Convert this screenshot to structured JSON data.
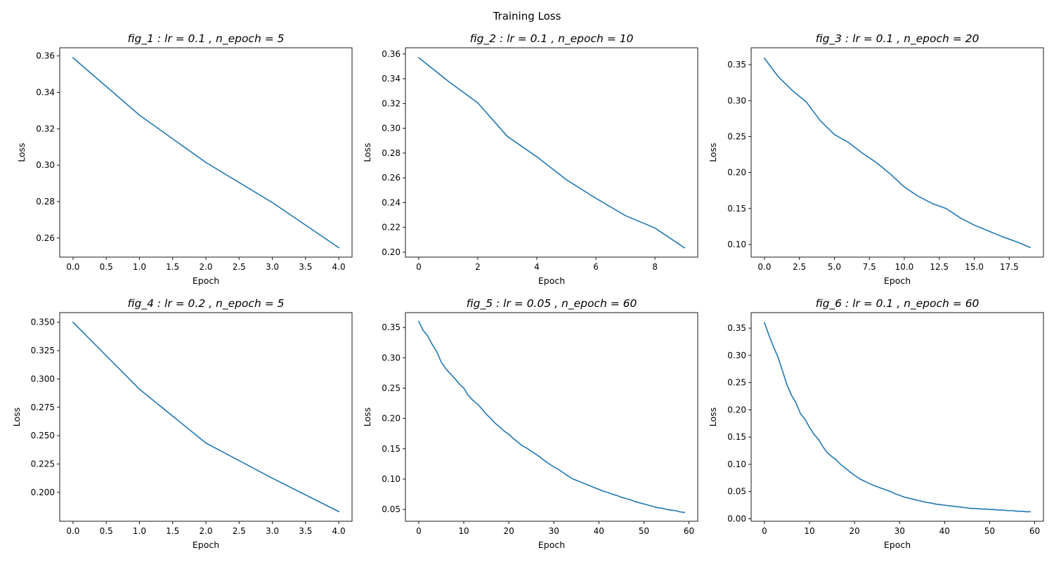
{
  "figure": {
    "suptitle": "Training Loss"
  },
  "chart_data": [
    {
      "type": "line",
      "title": "fig_1 : lr = 0.1 , n_epoch = 5",
      "xlabel": "Epoch",
      "ylabel": "Loss",
      "xlim": [
        -0.2,
        4.2
      ],
      "ylim": [
        0.2495,
        0.3645
      ],
      "xticks": [
        0,
        0.5,
        1,
        1.5,
        2,
        2.5,
        3,
        3.5,
        4
      ],
      "xtick_labels": [
        "0.0",
        "0.5",
        "1.0",
        "1.5",
        "2.0",
        "2.5",
        "3.0",
        "3.5",
        "4.0"
      ],
      "yticks": [
        0.26,
        0.28,
        0.3,
        0.32,
        0.34,
        0.36
      ],
      "ytick_labels": [
        "0.26",
        "0.28",
        "0.30",
        "0.32",
        "0.34",
        "0.36"
      ],
      "grid": false,
      "series": [
        {
          "color": "#1f77b4",
          "x": [
            0,
            1,
            2,
            3,
            4
          ],
          "y": [
            0.359,
            0.3275,
            0.3015,
            0.2795,
            0.2547
          ]
        }
      ]
    },
    {
      "type": "line",
      "title": "fig_2 : lr = 0.1 , n_epoch = 10",
      "xlabel": "Epoch",
      "ylabel": "Loss",
      "xlim": [
        -0.45,
        9.45
      ],
      "ylim": [
        0.196,
        0.365
      ],
      "xticks": [
        0,
        2,
        4,
        6,
        8
      ],
      "xtick_labels": [
        "0",
        "2",
        "4",
        "6",
        "8"
      ],
      "yticks": [
        0.2,
        0.22,
        0.24,
        0.26,
        0.28,
        0.3,
        0.32,
        0.34,
        0.36
      ],
      "ytick_labels": [
        "0.20",
        "0.22",
        "0.24",
        "0.26",
        "0.28",
        "0.30",
        "0.32",
        "0.34",
        "0.36"
      ],
      "grid": false,
      "series": [
        {
          "color": "#1f77b4",
          "x": [
            0,
            1,
            2,
            3,
            4,
            5,
            6,
            7,
            8,
            9
          ],
          "y": [
            0.357,
            0.338,
            0.3205,
            0.2935,
            0.277,
            0.2585,
            0.2435,
            0.2295,
            0.2195,
            0.2035
          ]
        }
      ]
    },
    {
      "type": "line",
      "title": "fig_3 : lr = 0.1 , n_epoch = 20",
      "xlabel": "Epoch",
      "ylabel": "Loss",
      "xlim": [
        -0.95,
        19.95
      ],
      "ylim": [
        0.0825,
        0.3735
      ],
      "xticks": [
        0,
        2.5,
        5,
        7.5,
        10,
        12.5,
        15,
        17.5
      ],
      "xtick_labels": [
        "0.0",
        "2.5",
        "5.0",
        "7.5",
        "10.0",
        "12.5",
        "15.0",
        "17.5"
      ],
      "yticks": [
        0.1,
        0.15,
        0.2,
        0.25,
        0.3,
        0.35
      ],
      "ytick_labels": [
        "0.10",
        "0.15",
        "0.20",
        "0.25",
        "0.30",
        "0.35"
      ],
      "grid": false,
      "series": [
        {
          "color": "#1f77b4",
          "x": [
            0,
            1,
            2,
            3,
            4,
            5,
            6,
            7,
            8,
            9,
            10,
            11,
            12,
            13,
            14,
            15,
            16,
            17,
            18,
            19
          ],
          "y": [
            0.359,
            0.333,
            0.314,
            0.298,
            0.272,
            0.253,
            0.242,
            0.227,
            0.214,
            0.198,
            0.18,
            0.167,
            0.157,
            0.15,
            0.137,
            0.127,
            0.119,
            0.111,
            0.104,
            0.096
          ]
        }
      ]
    },
    {
      "type": "line",
      "title": "fig_4 : lr = 0.2 , n_epoch = 5",
      "xlabel": "Epoch",
      "ylabel": "Loss",
      "xlim": [
        -0.2,
        4.2
      ],
      "ylim": [
        0.1745,
        0.3585
      ],
      "xticks": [
        0,
        0.5,
        1,
        1.5,
        2,
        2.5,
        3,
        3.5,
        4
      ],
      "xtick_labels": [
        "0.0",
        "0.5",
        "1.0",
        "1.5",
        "2.0",
        "2.5",
        "3.0",
        "3.5",
        "4.0"
      ],
      "yticks": [
        0.2,
        0.225,
        0.25,
        0.275,
        0.3,
        0.325,
        0.35
      ],
      "ytick_labels": [
        "0.200",
        "0.225",
        "0.250",
        "0.275",
        "0.300",
        "0.325",
        "0.350"
      ],
      "grid": false,
      "series": [
        {
          "color": "#1f77b4",
          "x": [
            0,
            1,
            2,
            3,
            4
          ],
          "y": [
            0.35,
            0.291,
            0.2435,
            0.2125,
            0.183
          ]
        }
      ]
    },
    {
      "type": "line",
      "title": "fig_5 : lr = 0.05 , n_epoch = 60",
      "xlabel": "Epoch",
      "ylabel": "Loss",
      "xlim": [
        -2.95,
        61.95
      ],
      "ylim": [
        0.0305,
        0.3745
      ],
      "xticks": [
        0,
        10,
        20,
        30,
        40,
        50,
        60
      ],
      "xtick_labels": [
        "0",
        "10",
        "20",
        "30",
        "40",
        "50",
        "60"
      ],
      "yticks": [
        0.05,
        0.1,
        0.15,
        0.2,
        0.25,
        0.3,
        0.35
      ],
      "ytick_labels": [
        "0.05",
        "0.10",
        "0.15",
        "0.20",
        "0.25",
        "0.30",
        "0.35"
      ],
      "grid": false,
      "series": [
        {
          "color": "#1f77b4",
          "x": [
            0,
            1,
            2,
            3,
            4,
            5,
            6,
            7,
            8,
            9,
            10,
            11,
            12,
            13,
            14,
            15,
            16,
            17,
            18,
            19,
            20,
            21,
            22,
            23,
            24,
            25,
            26,
            27,
            28,
            29,
            30,
            31,
            32,
            33,
            34,
            35,
            36,
            37,
            38,
            39,
            40,
            41,
            42,
            43,
            44,
            45,
            46,
            47,
            48,
            49,
            50,
            51,
            52,
            53,
            54,
            55,
            56,
            57,
            58,
            59
          ],
          "y": [
            0.36,
            0.345,
            0.336,
            0.322,
            0.31,
            0.293,
            0.282,
            0.274,
            0.266,
            0.257,
            0.25,
            0.238,
            0.23,
            0.224,
            0.216,
            0.207,
            0.2,
            0.192,
            0.186,
            0.179,
            0.174,
            0.167,
            0.161,
            0.155,
            0.151,
            0.146,
            0.141,
            0.136,
            0.13,
            0.125,
            0.12,
            0.116,
            0.111,
            0.106,
            0.101,
            0.098,
            0.095,
            0.092,
            0.089,
            0.086,
            0.083,
            0.08,
            0.078,
            0.075,
            0.073,
            0.07,
            0.068,
            0.066,
            0.063,
            0.061,
            0.059,
            0.057,
            0.055,
            0.053,
            0.052,
            0.05,
            0.049,
            0.048,
            0.046,
            0.045
          ]
        }
      ]
    },
    {
      "type": "line",
      "title": "fig_6 : lr = 0.1 , n_epoch = 60",
      "xlabel": "Epoch",
      "ylabel": "Loss",
      "xlim": [
        -2.95,
        61.95
      ],
      "ylim": [
        -0.0045,
        0.3785
      ],
      "xticks": [
        0,
        10,
        20,
        30,
        40,
        50,
        60
      ],
      "xtick_labels": [
        "0",
        "10",
        "20",
        "30",
        "40",
        "50",
        "60"
      ],
      "yticks": [
        0.0,
        0.05,
        0.1,
        0.15,
        0.2,
        0.25,
        0.3,
        0.35
      ],
      "ytick_labels": [
        "0.00",
        "0.05",
        "0.10",
        "0.15",
        "0.20",
        "0.25",
        "0.30",
        "0.35"
      ],
      "grid": false,
      "series": [
        {
          "color": "#1f77b4",
          "x": [
            0,
            1,
            2,
            3,
            4,
            5,
            6,
            7,
            8,
            9,
            10,
            11,
            12,
            13,
            14,
            15,
            16,
            17,
            18,
            19,
            20,
            21,
            22,
            23,
            24,
            25,
            26,
            27,
            28,
            29,
            30,
            31,
            32,
            33,
            34,
            35,
            36,
            37,
            38,
            39,
            40,
            41,
            42,
            43,
            44,
            45,
            46,
            47,
            48,
            49,
            50,
            51,
            52,
            53,
            54,
            55,
            56,
            57,
            58,
            59
          ],
          "y": [
            0.36,
            0.337,
            0.316,
            0.297,
            0.272,
            0.246,
            0.227,
            0.213,
            0.193,
            0.183,
            0.168,
            0.155,
            0.146,
            0.132,
            0.121,
            0.114,
            0.108,
            0.099,
            0.093,
            0.086,
            0.08,
            0.074,
            0.07,
            0.066,
            0.062,
            0.059,
            0.056,
            0.053,
            0.05,
            0.046,
            0.043,
            0.04,
            0.038,
            0.036,
            0.034,
            0.032,
            0.03,
            0.029,
            0.027,
            0.026,
            0.025,
            0.024,
            0.023,
            0.022,
            0.021,
            0.02,
            0.019,
            0.019,
            0.018,
            0.018,
            0.017,
            0.017,
            0.016,
            0.016,
            0.015,
            0.015,
            0.014,
            0.014,
            0.013,
            0.013
          ]
        }
      ]
    }
  ]
}
